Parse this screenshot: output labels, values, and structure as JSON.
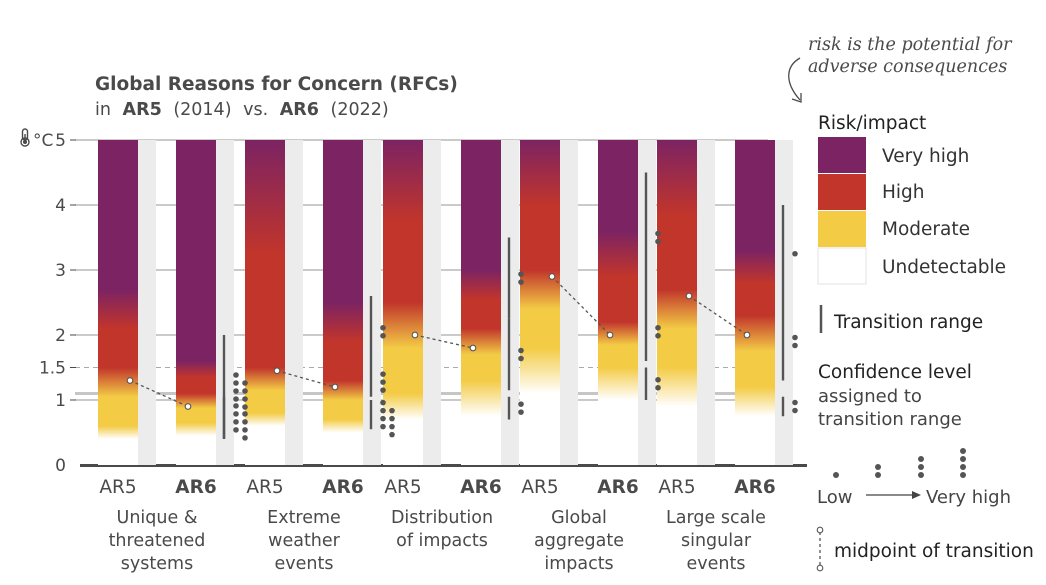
{
  "chart_data": {
    "type": "bar",
    "title": "Global Reasons for Concern (RFCs)",
    "subtitle": {
      "pre": "in",
      "a": "AR5",
      "a_year": "(2014)",
      "mid": "vs.",
      "b": "AR6",
      "b_year": "(2022)"
    },
    "ylabel": "°C",
    "ylim": [
      0,
      5
    ],
    "y_ticks": [
      {
        "value": 0,
        "label": "0"
      },
      {
        "value": 1,
        "label": "1"
      },
      {
        "value": 1.5,
        "label": "1.5"
      },
      {
        "value": 2,
        "label": "2"
      },
      {
        "value": 3,
        "label": "3"
      },
      {
        "value": 4,
        "label": "4"
      },
      {
        "value": 5,
        "label": "5"
      }
    ],
    "categories": [
      {
        "name": [
          "Unique &",
          "threatened",
          "systems"
        ],
        "bars": [
          {
            "label": "AR5",
            "und_top": 0.4,
            "mod": 0.6,
            "high": 1.5,
            "vhigh": 2.7,
            "midpoint": 1.3
          },
          {
            "label": "AR6",
            "und_top": 0.45,
            "mod": 0.65,
            "high": 1.1,
            "vhigh": 1.6,
            "midpoint": 0.9
          }
        ],
        "transitions": [
          {
            "bottom": 0.4,
            "top": 2.0,
            "confidence": 4
          },
          {
            "bottom": 0.4,
            "top": 1.05,
            "confidence": 4
          }
        ]
      },
      {
        "name": [
          "Extreme",
          "weather",
          "events"
        ],
        "bars": [
          {
            "label": "AR5",
            "und_top": 0.6,
            "mod": 0.8,
            "high": 1.5,
            "vhigh": 5.0,
            "midpoint": 1.45
          },
          {
            "label": "AR6",
            "und_top": 0.5,
            "mod": 0.7,
            "high": 1.3,
            "vhigh": 2.5,
            "midpoint": 1.2
          }
        ],
        "transitions": [
          {
            "bottom": 1.05,
            "top": 1.5,
            "confidence": 3
          },
          {
            "bottom": 0.55,
            "top": 1.0,
            "confidence": 4
          },
          {
            "bottom": 1.5,
            "top": 2.6,
            "confidence": 2
          }
        ]
      },
      {
        "name": [
          "Distribution",
          "of impacts"
        ],
        "bars": [
          {
            "label": "AR5",
            "und_top": 0.7,
            "mod": 1.1,
            "high": 2.5,
            "vhigh": 5.0,
            "midpoint": 2.0
          },
          {
            "label": "AR6",
            "und_top": 0.75,
            "mod": 1.3,
            "high": 2.1,
            "vhigh": 3.0,
            "midpoint": 1.8
          }
        ],
        "transitions": [
          {
            "bottom": 0.7,
            "top": 1.05,
            "confidence": 2
          },
          {
            "bottom": 1.15,
            "top": 2.25,
            "confidence": 2
          },
          {
            "bottom": 2.25,
            "top": 3.5,
            "confidence": 2
          }
        ]
      },
      {
        "name": [
          "Global",
          "aggregate",
          "impacts"
        ],
        "bars": [
          {
            "label": "AR5",
            "und_top": 1.1,
            "mod": 1.8,
            "high": 3.0,
            "vhigh": 5.0,
            "midpoint": 2.9
          },
          {
            "label": "AR6",
            "und_top": 1.0,
            "mod": 1.5,
            "high": 2.2,
            "vhigh": 3.6,
            "midpoint": 2.0
          }
        ],
        "transitions": [
          {
            "bottom": 1.0,
            "top": 1.5,
            "confidence": 2
          },
          {
            "bottom": 1.6,
            "top": 2.5,
            "confidence": 2
          },
          {
            "bottom": 2.5,
            "top": 4.5,
            "confidence": 2
          }
        ]
      },
      {
        "name": [
          "Large scale",
          "singular",
          "events"
        ],
        "bars": [
          {
            "label": "AR5",
            "und_top": 0.9,
            "mod": 1.5,
            "high": 2.7,
            "vhigh": 5.0,
            "midpoint": 2.6
          },
          {
            "label": "AR6",
            "und_top": 0.75,
            "mod": 1.2,
            "high": 2.3,
            "vhigh": 3.3,
            "midpoint": 2.0
          }
        ],
        "transitions": [
          {
            "bottom": 0.75,
            "top": 1.05,
            "confidence": 2
          },
          {
            "bottom": 1.3,
            "top": 2.5,
            "confidence": 2
          },
          {
            "bottom": 2.5,
            "top": 4.0,
            "confidence": 1
          }
        ]
      }
    ],
    "colors": {
      "undetectable": "#ffffff",
      "moderate": "#f3cb45",
      "high": "#c1352b",
      "very_high": "#7c2363",
      "axis": "#4a4a4a",
      "grid": "#aaaaaa",
      "marker": "#555555"
    }
  },
  "annotation": [
    "risk is the potential for",
    "adverse consequences"
  ],
  "legend": {
    "risk_title": "Risk/impact",
    "levels": [
      {
        "label": "Very high",
        "color": "#7c2363"
      },
      {
        "label": "High",
        "color": "#c1352b"
      },
      {
        "label": "Moderate",
        "color": "#f3cb45"
      },
      {
        "label": "Undetectable",
        "color": "#ffffff"
      }
    ],
    "transition_label": "Transition range",
    "confidence_title": "Confidence level",
    "confidence_sub": [
      "assigned to",
      "transition range"
    ],
    "confidence_low": "Low",
    "confidence_high": "Very high",
    "midpoint_label": "midpoint of transition"
  }
}
